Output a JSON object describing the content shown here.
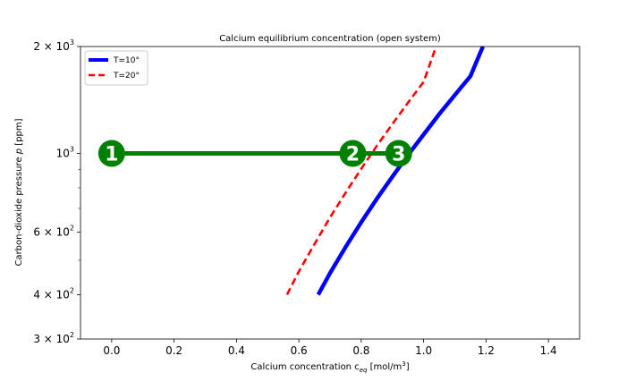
{
  "chart_data": {
    "type": "line",
    "title": "Calcium equilibrium concentration (open system)",
    "xlabel": {
      "main": "Calcium concentration c",
      "sub": "eq",
      "unit": " [mol/m",
      "sup": "3",
      "close": "]"
    },
    "ylabel": {
      "main": "Carbon-dioxide pressure ",
      "italic": "p",
      "unit": " [ppm]"
    },
    "xlim": [
      -0.1,
      1.5
    ],
    "ylim": [
      300,
      2000
    ],
    "yscale": "log",
    "x_ticks": [
      {
        "value": 0.0,
        "label": "0.0"
      },
      {
        "value": 0.2,
        "label": "0.2"
      },
      {
        "value": 0.4,
        "label": "0.4"
      },
      {
        "value": 0.6,
        "label": "0.6"
      },
      {
        "value": 0.8,
        "label": "0.8"
      },
      {
        "value": 1.0,
        "label": "1.0"
      },
      {
        "value": 1.2,
        "label": "1.2"
      },
      {
        "value": 1.4,
        "label": "1.4"
      }
    ],
    "y_ticks": [
      {
        "value": 300,
        "base": "3 × 10",
        "exp": "2"
      },
      {
        "value": 400,
        "base": "4 × 10",
        "exp": "2"
      },
      {
        "value": 600,
        "base": "6 × 10",
        "exp": "2"
      },
      {
        "value": 1000,
        "base": "10",
        "exp": "3"
      },
      {
        "value": 2000,
        "base": "2 × 10",
        "exp": "3"
      }
    ],
    "y_minor_ticks": [
      500,
      700,
      800,
      900
    ],
    "legend_position": "top-left",
    "series": [
      {
        "name": "T=10°",
        "color": "#0000ff",
        "style": "solid",
        "points": [
          [
            0.662,
            400
          ],
          [
            0.7,
            460
          ],
          [
            0.75,
            545
          ],
          [
            0.8,
            640
          ],
          [
            0.85,
            745
          ],
          [
            0.9,
            860
          ],
          [
            0.95,
            990
          ],
          [
            1.0,
            1130
          ],
          [
            1.05,
            1290
          ],
          [
            1.1,
            1460
          ],
          [
            1.15,
            1650
          ],
          [
            1.19,
            2000
          ]
        ]
      },
      {
        "name": "T=20°",
        "color": "#ff0000",
        "style": "dashed",
        "points": [
          [
            0.562,
            400
          ],
          [
            0.6,
            465
          ],
          [
            0.65,
            555
          ],
          [
            0.7,
            660
          ],
          [
            0.75,
            775
          ],
          [
            0.8,
            905
          ],
          [
            0.85,
            1050
          ],
          [
            0.9,
            1210
          ],
          [
            0.95,
            1390
          ],
          [
            1.0,
            1590
          ],
          [
            1.04,
            2000
          ]
        ]
      }
    ],
    "path_line": {
      "color": "#008000",
      "y": 1000,
      "x_start": 0.0,
      "x_end": 0.92
    },
    "markers": [
      {
        "label": "1",
        "x": 0.0,
        "y": 1000
      },
      {
        "label": "2",
        "x": 0.773,
        "y": 1000
      },
      {
        "label": "3",
        "x": 0.92,
        "y": 1000
      }
    ],
    "marker_color": "#008000"
  }
}
